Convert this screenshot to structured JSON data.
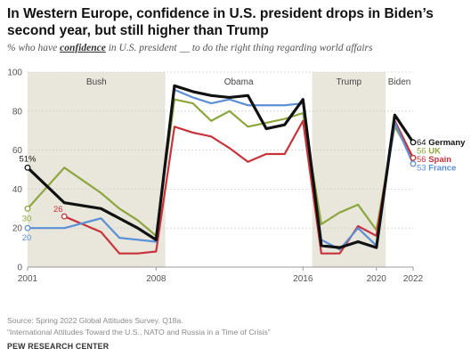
{
  "title": "In Western Europe, confidence in U.S. president drops in Biden’s second year, but still higher than Trump",
  "subtitle": {
    "pre": "% who have ",
    "emphasis": "confidence",
    "post": " in U.S. president __ to do the right thing regarding world affairs"
  },
  "footer": {
    "source": "Source: Spring 2022 Global Attitudes Survey. Q18a.",
    "note": "“International Attitudes Toward the U.S., NATO and Russia in a Time of Crisis”",
    "brand": "PEW RESEARCH CENTER"
  },
  "chart_data": {
    "type": "line",
    "xlim": [
      2001,
      2022
    ],
    "ylim": [
      0,
      100
    ],
    "yticks": [
      0,
      20,
      40,
      60,
      80,
      100
    ],
    "xticks": [
      2001,
      2008,
      2016,
      2020,
      2022
    ],
    "grid": true,
    "eras": [
      {
        "label": "Bush",
        "start": 2001,
        "end": 2008,
        "shaded": true
      },
      {
        "label": "Obama",
        "start": 2009,
        "end": 2016,
        "shaded": false
      },
      {
        "label": "Trump",
        "start": 2017,
        "end": 2020,
        "shaded": true
      },
      {
        "label": "Biden",
        "start": 2021,
        "end": 2022,
        "shaded": false
      }
    ],
    "series": [
      {
        "name": "UK",
        "color": "#8da53d",
        "width": 2.2,
        "x": [
          2001,
          2003,
          2005,
          2006,
          2007,
          2008,
          2009,
          2010,
          2011,
          2012,
          2013,
          2014,
          2015,
          2016,
          2017,
          2018,
          2019,
          2020,
          2021,
          2022
        ],
        "y": [
          30,
          51,
          38,
          30,
          24,
          16,
          86,
          84,
          75,
          80,
          72,
          74,
          76,
          79,
          22,
          28,
          32,
          19,
          72,
          56
        ],
        "start_label": "30",
        "end_label": "56"
      },
      {
        "name": "Spain",
        "color": "#c8323a",
        "width": 2.2,
        "x": [
          2003,
          2005,
          2006,
          2007,
          2008,
          2009,
          2010,
          2011,
          2012,
          2013,
          2014,
          2015,
          2016,
          2017,
          2018,
          2019,
          2020,
          2021,
          2022
        ],
        "y": [
          26,
          18,
          7,
          7,
          8,
          72,
          69,
          67,
          61,
          54,
          58,
          58,
          75,
          7,
          7,
          21,
          16,
          75,
          56
        ],
        "start_label": "26",
        "end_label": "56"
      },
      {
        "name": "France",
        "color": "#5b8fd6",
        "width": 2.2,
        "x": [
          2001,
          2003,
          2005,
          2006,
          2007,
          2008,
          2009,
          2010,
          2011,
          2012,
          2013,
          2014,
          2015,
          2016,
          2017,
          2018,
          2019,
          2020,
          2021,
          2022
        ],
        "y": [
          20,
          20,
          25,
          15,
          14,
          13,
          91,
          87,
          84,
          86,
          83,
          83,
          83,
          84,
          14,
          9,
          20,
          11,
          74,
          53
        ],
        "start_label": "20",
        "end_label": "53"
      },
      {
        "name": "Germany",
        "color": "#111111",
        "width": 3.2,
        "x": [
          2001,
          2003,
          2005,
          2006,
          2007,
          2008,
          2009,
          2010,
          2011,
          2012,
          2013,
          2014,
          2015,
          2016,
          2017,
          2018,
          2019,
          2020,
          2021,
          2022
        ],
        "y": [
          51,
          33,
          30,
          25,
          20,
          14,
          93,
          90,
          88,
          87,
          88,
          71,
          73,
          86,
          11,
          10,
          13,
          10,
          78,
          64
        ],
        "start_label": "51%",
        "end_label": "64"
      }
    ]
  }
}
